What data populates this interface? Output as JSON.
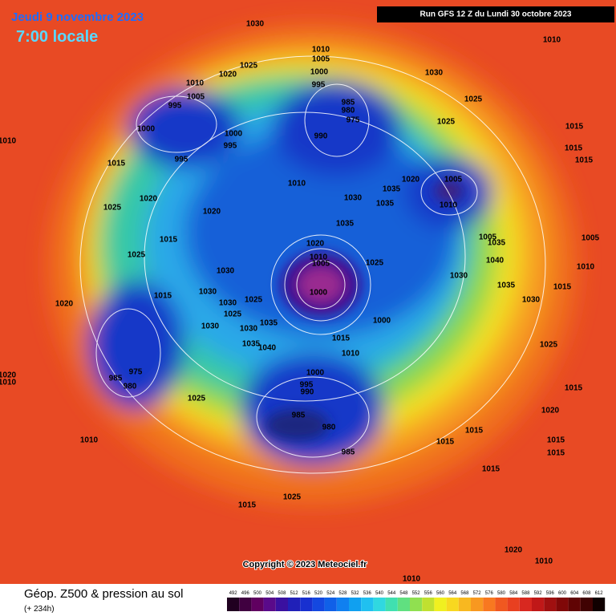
{
  "header": {
    "date": "Jeudi 9 novembre 2023",
    "time": "7:00 locale",
    "run": "Run GFS 12 Z du Lundi 30 octobre 2023"
  },
  "map": {
    "copyright": "Copyright © 2023 Meteociel.fr",
    "isobar_labels": [
      "1030",
      "1010",
      "1005",
      "1000",
      "995",
      "1025",
      "1020",
      "1010",
      "1005",
      "995",
      "985",
      "980",
      "975",
      "990",
      "1000",
      "995",
      "1000",
      "995",
      "1010",
      "1015",
      "1010",
      "1030",
      "1035",
      "1035",
      "1020",
      "1005",
      "1010",
      "1030",
      "1010",
      "1025",
      "1025",
      "1015",
      "1015",
      "1015",
      "1020",
      "1025",
      "1020",
      "1015",
      "1025",
      "1035",
      "1020",
      "1010",
      "1005",
      "1000",
      "1025",
      "1030",
      "1030",
      "1030",
      "1025",
      "1025",
      "1035",
      "1030",
      "1030",
      "1035",
      "1040",
      "1015",
      "1020",
      "1000",
      "1015",
      "1010",
      "1000",
      "995",
      "990",
      "985",
      "980",
      "985",
      "975",
      "985",
      "980",
      "1025",
      "1010",
      "1005",
      "1035",
      "1040",
      "1030",
      "1035",
      "1030",
      "1005",
      "1010",
      "1015",
      "1025",
      "1015",
      "1020",
      "1015",
      "1015",
      "1015",
      "1015",
      "1015",
      "1015",
      "1025",
      "1020",
      "1010",
      "1020",
      "1010",
      "1010"
    ]
  },
  "footer": {
    "title": "Géop. Z500 & pression au sol",
    "lead": "(+ 234h)",
    "colorbar": [
      492,
      496,
      500,
      504,
      508,
      512,
      516,
      520,
      524,
      528,
      532,
      536,
      540,
      544,
      548,
      552,
      556,
      560,
      564,
      568,
      572,
      576,
      580,
      584,
      588,
      592,
      596,
      600,
      604,
      608,
      612
    ]
  }
}
